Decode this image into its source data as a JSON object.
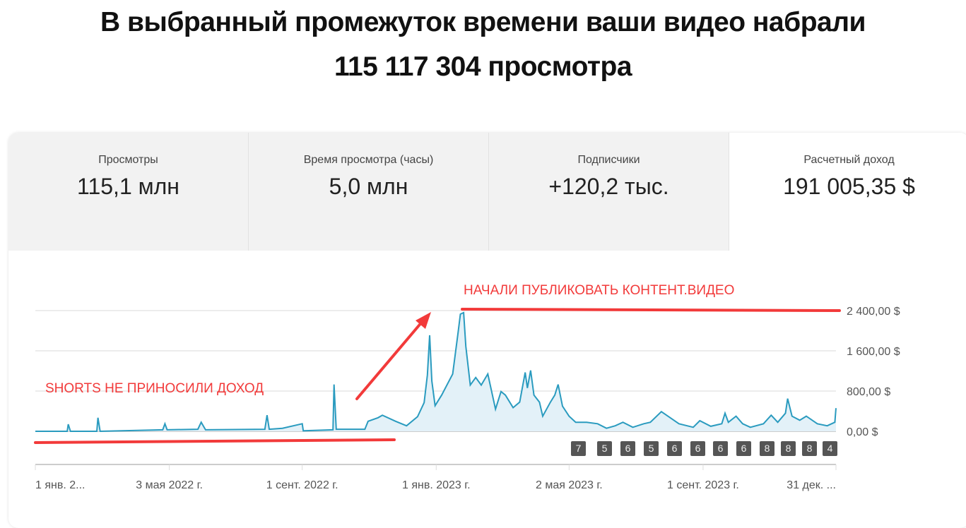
{
  "header": {
    "line1": "В выбранный промежуток времени ваши видео набрали",
    "line2": "115 117 304 просмотра"
  },
  "metrics": [
    {
      "label": "Просмотры",
      "value": "115,1 млн"
    },
    {
      "label": "Время просмотра (часы)",
      "value": "5,0 млн"
    },
    {
      "label": "Подписчики",
      "value": "+120,2 тыс."
    },
    {
      "label": "Расчетный доход",
      "value": "191 005,35 $",
      "selected": true
    }
  ],
  "annotations": {
    "left": "SHORTS НЕ ПРИНОСИЛИ ДОХОД",
    "top": "НАЧАЛИ ПУБЛИКОВАТЬ КОНТЕНТ.ВИДЕО",
    "color": "#f23a3a"
  },
  "badges": [
    "7",
    "5",
    "6",
    "5",
    "6",
    "6",
    "6",
    "6",
    "8",
    "8",
    "8",
    "4"
  ],
  "chart_data": {
    "type": "area",
    "ylabel": "",
    "xlabel": "",
    "ylim": [
      0,
      2400
    ],
    "yticks": [
      0,
      800,
      1600,
      2400
    ],
    "ytick_labels": [
      "0,00 $",
      "800,00 $",
      "1 600,00 $",
      "2 400,00 $"
    ],
    "xlim": [
      "2022-01-01",
      "2023-12-31"
    ],
    "xticks": [
      "2022-01-01",
      "2022-05-03",
      "2022-09-01",
      "2023-01-01",
      "2023-05-02",
      "2023-09-01",
      "2023-12-31"
    ],
    "xtick_labels": [
      "1 янв. 2...",
      "3 мая 2022 г.",
      "1 сент. 2022 г.",
      "1 янв. 2023 г.",
      "2 мая 2023 г.",
      "1 сент. 2023 г.",
      "31 дек. ..."
    ],
    "grid": true,
    "color": "#2a9bbf",
    "series": [
      {
        "x": [
          "2022-01-01",
          "2022-01-30",
          "2022-01-31",
          "2022-02-02",
          "2022-02-26",
          "2022-02-27",
          "2022-03-01",
          "2022-04-27",
          "2022-04-29",
          "2022-05-01",
          "2022-05-29",
          "2022-06-01",
          "2022-06-05",
          "2022-07-29",
          "2022-07-31",
          "2022-08-02",
          "2022-08-14",
          "2022-09-01",
          "2022-09-02",
          "2022-09-29",
          "2022-09-30",
          "2022-10-02",
          "2022-10-28",
          "2022-10-31",
          "2022-11-09",
          "2022-11-13",
          "2022-11-25",
          "2022-12-05",
          "2022-12-15",
          "2022-12-21",
          "2022-12-24",
          "2022-12-26",
          "2022-12-28",
          "2022-12-31",
          "2023-01-06",
          "2023-01-16",
          "2023-01-21",
          "2023-01-23",
          "2023-01-26",
          "2023-01-28",
          "2023-02-01",
          "2023-02-06",
          "2023-02-11",
          "2023-02-17",
          "2023-02-24",
          "2023-03-01",
          "2023-03-05",
          "2023-03-12",
          "2023-03-18",
          "2023-03-23",
          "2023-03-25",
          "2023-03-28",
          "2023-03-31",
          "2023-04-05",
          "2023-04-08",
          "2023-04-15",
          "2023-04-19",
          "2023-04-22",
          "2023-04-26",
          "2023-05-02",
          "2023-05-08",
          "2023-05-18",
          "2023-05-28",
          "2023-06-05",
          "2023-06-13",
          "2023-06-20",
          "2023-06-29",
          "2023-07-09",
          "2023-07-15",
          "2023-07-25",
          "2023-07-31",
          "2023-08-10",
          "2023-08-23",
          "2023-08-29",
          "2023-09-08",
          "2023-09-18",
          "2023-09-21",
          "2023-09-24",
          "2023-10-01",
          "2023-10-07",
          "2023-10-14",
          "2023-10-26",
          "2023-11-02",
          "2023-11-08",
          "2023-11-15",
          "2023-11-17",
          "2023-11-21",
          "2023-11-28",
          "2023-12-04",
          "2023-12-14",
          "2023-12-23",
          "2023-12-30",
          "2023-12-31"
        ],
        "values": [
          0,
          0,
          140,
          0,
          0,
          270,
          0,
          30,
          150,
          30,
          40,
          180,
          30,
          40,
          320,
          40,
          60,
          150,
          10,
          30,
          930,
          40,
          40,
          200,
          270,
          320,
          200,
          110,
          290,
          570,
          1120,
          1910,
          1000,
          510,
          720,
          1140,
          1980,
          2330,
          2360,
          1690,
          920,
          1070,
          920,
          1140,
          440,
          790,
          720,
          470,
          580,
          1170,
          860,
          1210,
          720,
          580,
          300,
          580,
          720,
          930,
          500,
          300,
          180,
          180,
          150,
          60,
          110,
          180,
          80,
          150,
          180,
          390,
          300,
          150,
          80,
          210,
          100,
          150,
          360,
          180,
          300,
          150,
          80,
          150,
          320,
          180,
          360,
          650,
          300,
          220,
          300,
          150,
          110,
          180,
          460
        ]
      }
    ]
  }
}
